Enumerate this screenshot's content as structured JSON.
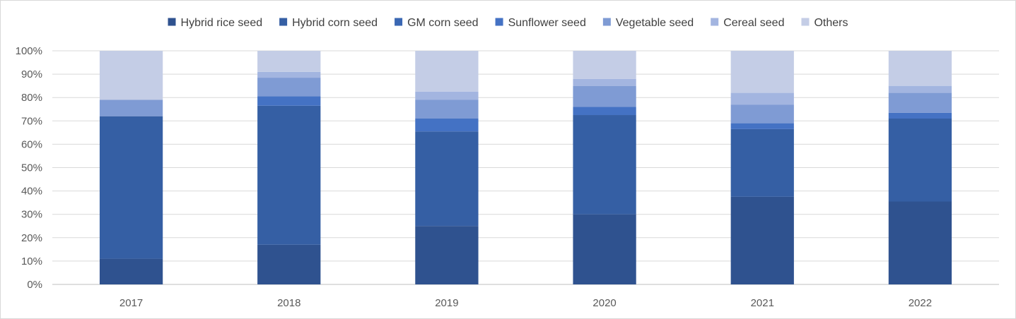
{
  "chart_data": {
    "type": "bar",
    "stacked": true,
    "normalized": true,
    "categories": [
      "2017",
      "2018",
      "2019",
      "2020",
      "2021",
      "2022"
    ],
    "series": [
      {
        "name": "Hybrid rice seed",
        "color": "#2f528f",
        "values": [
          11,
          17,
          25,
          30,
          37.5,
          35.5
        ]
      },
      {
        "name": "Hybrid corn seed",
        "color": "#355fa4",
        "values": [
          61,
          59.5,
          40.5,
          42.5,
          29,
          35.5
        ]
      },
      {
        "name": "GM corn seed",
        "color": "#3a67b3",
        "values": [
          0,
          0,
          0,
          0,
          0,
          0
        ]
      },
      {
        "name": "Sunflower seed",
        "color": "#4472c4",
        "values": [
          0,
          4,
          5.5,
          3.5,
          2.5,
          2.5
        ]
      },
      {
        "name": "Vegetable seed",
        "color": "#7f9bd4",
        "values": [
          7,
          8,
          8,
          9,
          8,
          8.5
        ]
      },
      {
        "name": "Cereal seed",
        "color": "#a3b5e0",
        "values": [
          0,
          2.5,
          3.5,
          3,
          5,
          3
        ]
      },
      {
        "name": "Others",
        "color": "#c4cde6",
        "values": [
          21,
          9,
          17.5,
          12,
          18,
          15
        ]
      }
    ],
    "y_ticks": [
      "0%",
      "10%",
      "20%",
      "30%",
      "40%",
      "50%",
      "60%",
      "70%",
      "80%",
      "90%",
      "100%"
    ],
    "ylim": [
      0,
      100
    ],
    "grid": true,
    "legend_position": "top",
    "title": "",
    "xlabel": "",
    "ylabel": ""
  }
}
